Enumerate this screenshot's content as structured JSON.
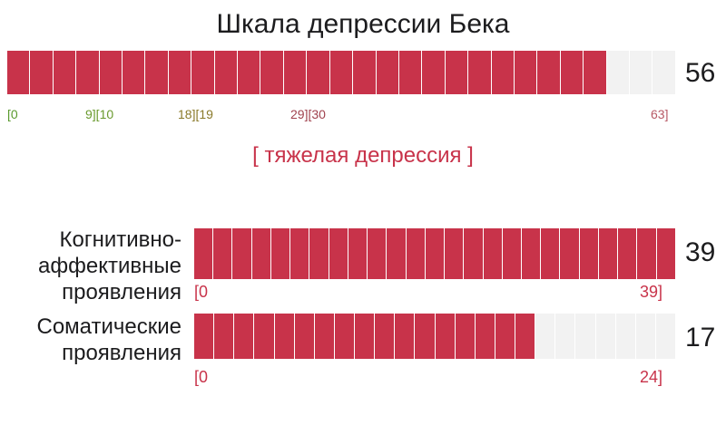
{
  "title": "Шкала депрессии Бека",
  "colors": {
    "filled": "#c8334a",
    "empty": "#f2f2f2",
    "tick_green": "#5a9a2e",
    "tick_olive": "#8a9a30",
    "tick_brown": "#8a3b2a",
    "tick_rose": "#b85a66"
  },
  "total": {
    "score": "56",
    "value": 56,
    "max": 63,
    "segments": 29,
    "ticks": [
      "[0",
      "9][10",
      "18][19",
      "29][30",
      "63]"
    ]
  },
  "severity": "[ тяжелая депрессия ]",
  "subscales": [
    {
      "label_lines": [
        "Когнитивно-",
        "аффективные",
        "проявления"
      ],
      "score": "39",
      "value": 39,
      "max": 39,
      "segments": 25,
      "range_start": "[0",
      "range_end": "39]"
    },
    {
      "label_lines": [
        "Соматические",
        "проявления"
      ],
      "score": "17",
      "value": 17,
      "max": 24,
      "segments": 24,
      "range_start": "[0",
      "range_end": "24]"
    }
  ]
}
